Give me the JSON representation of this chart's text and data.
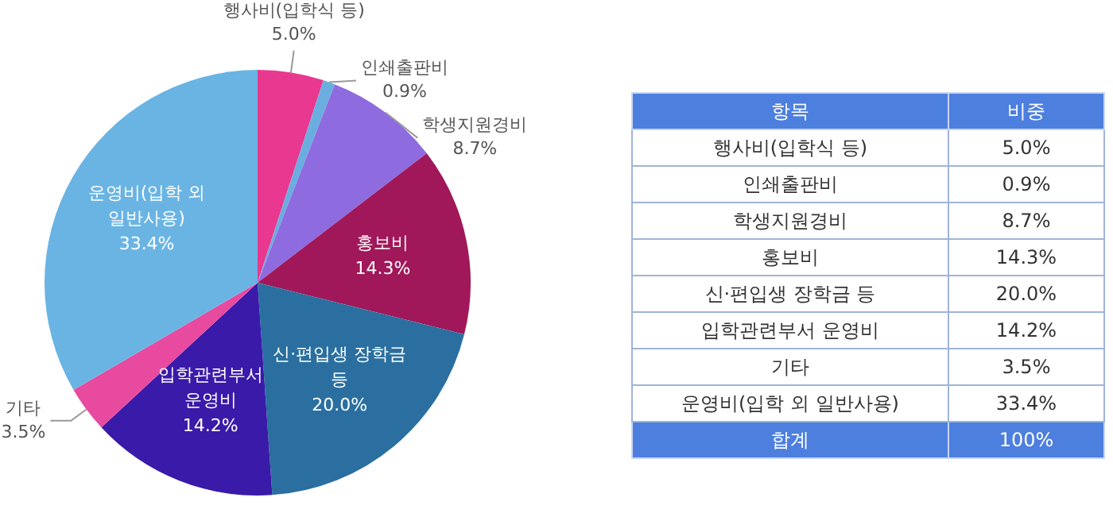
{
  "chart_data": {
    "type": "pie",
    "categories": [
      "행사비(입학식 등)",
      "인쇄출판비",
      "학생지원경비",
      "홍보비",
      "신·편입생 장학금 등",
      "입학관련부서 운영비",
      "기타",
      "운영비(입학 외 일반사용)"
    ],
    "values": [
      5.0,
      0.9,
      8.7,
      14.3,
      20.0,
      14.2,
      3.5,
      33.4
    ],
    "value_labels": [
      "5.0%",
      "0.9%",
      "8.7%",
      "14.3%",
      "20.0%",
      "14.2%",
      "3.5%",
      "33.4%"
    ],
    "colors": [
      "#e8388f",
      "#6aaee0",
      "#8f6be0",
      "#a0185a",
      "#2a6fa0",
      "#3a1aa8",
      "#e84aa0",
      "#6ab4e4"
    ],
    "legend": false,
    "annotations": [
      "항목",
      "비중",
      "합계",
      "100%"
    ]
  }
}
